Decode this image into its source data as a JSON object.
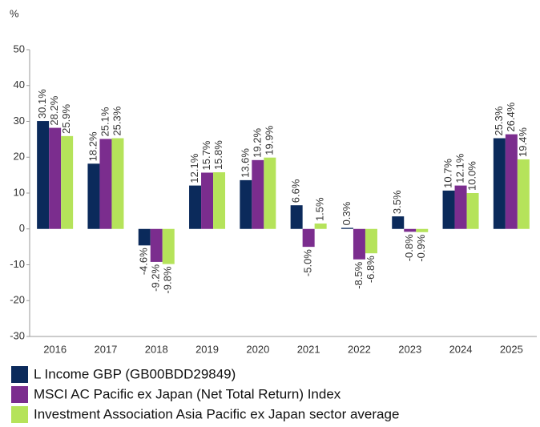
{
  "chart_data": {
    "type": "bar",
    "y_label": "%",
    "categories": [
      "2016",
      "2017",
      "2018",
      "2019",
      "2020",
      "2021",
      "2022",
      "2023",
      "2024",
      "2025"
    ],
    "series": [
      {
        "name": "L Income GBP (GB00BDD29849)",
        "color": "#0b2a5b",
        "values": [
          30.1,
          18.2,
          -4.6,
          12.1,
          13.6,
          6.6,
          0.3,
          3.5,
          10.7,
          25.3
        ],
        "value_labels": [
          "30.1%",
          "18.2%",
          "-4.6%",
          "12.1%",
          "13.6%",
          "6.6%",
          "0.3%",
          "3.5%",
          "10.7%",
          "25.3%"
        ]
      },
      {
        "name": "MSCI AC Pacific ex Japan (Net Total Return) Index",
        "color": "#7b2d8e",
        "values": [
          28.2,
          25.1,
          -9.2,
          15.7,
          19.2,
          -5.0,
          -8.5,
          -0.8,
          12.1,
          26.4
        ],
        "value_labels": [
          "28.2%",
          "25.1%",
          "-9.2%",
          "15.7%",
          "19.2%",
          "-5.0%",
          "-8.5%",
          "-0.8%",
          "12.1%",
          "26.4%"
        ]
      },
      {
        "name": "Investment Association Asia Pacific ex Japan sector average",
        "color": "#b5e35a",
        "values": [
          25.9,
          25.3,
          -9.8,
          15.8,
          19.9,
          1.5,
          -6.8,
          -0.9,
          10.0,
          19.4
        ],
        "value_labels": [
          "25.9%",
          "25.3%",
          "-9.8%",
          "15.8%",
          "19.9%",
          "1.5%",
          "-6.8%",
          "-0.9%",
          "10.0%",
          "19.4%"
        ]
      }
    ],
    "ylim": [
      -30,
      50
    ],
    "yticks": [
      -30,
      -20,
      -10,
      0,
      10,
      20,
      30,
      40,
      50
    ],
    "grid": false
  }
}
